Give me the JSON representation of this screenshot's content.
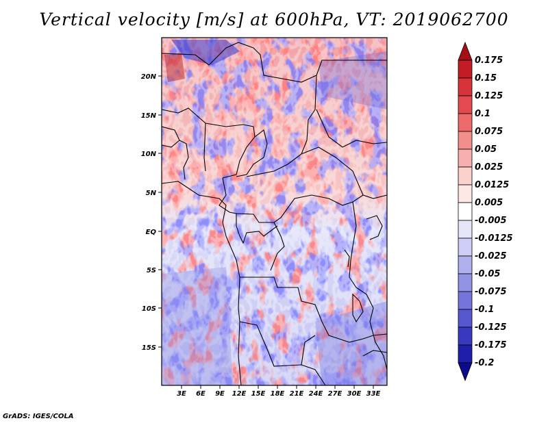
{
  "title": "Vertical velocity [m/s] at 600hPa, VT: 2019062700",
  "footer": "GrADS: IGES/COLA",
  "chart_data": {
    "type": "heatmap",
    "variable": "Vertical velocity",
    "units": "m/s",
    "level": "600hPa",
    "valid_time": "2019062700",
    "x_ticks": [
      "3E",
      "6E",
      "9E",
      "12E",
      "15E",
      "18E",
      "21E",
      "24E",
      "27E",
      "30E",
      "33E"
    ],
    "y_ticks": [
      "20N",
      "15N",
      "10N",
      "5N",
      "EQ",
      "5S",
      "10S",
      "15S"
    ],
    "xlim": [
      0,
      35
    ],
    "ylim": [
      -20,
      24.5
    ],
    "colorbar": {
      "levels": [
        "0.175",
        "0.15",
        "0.125",
        "0.1",
        "0.075",
        "0.05",
        "0.025",
        "0.0125",
        "0.005",
        "-0.005",
        "-0.0125",
        "-0.025",
        "-0.05",
        "-0.075",
        "-0.1",
        "-0.125",
        "-0.175",
        "-0.2"
      ],
      "colors": [
        "#a50f15",
        "#c21d24",
        "#d6333a",
        "#e4494d",
        "#ec6a6a",
        "#f28e8c",
        "#f7b0ae",
        "#fbd0cd",
        "#fde8e6",
        "#ffffff",
        "#e6e6fb",
        "#cdcdf5",
        "#b0b0ee",
        "#9393e6",
        "#7474dc",
        "#5656d0",
        "#3838c0",
        "#1e1eaa",
        "#0c0c8a"
      ]
    }
  }
}
